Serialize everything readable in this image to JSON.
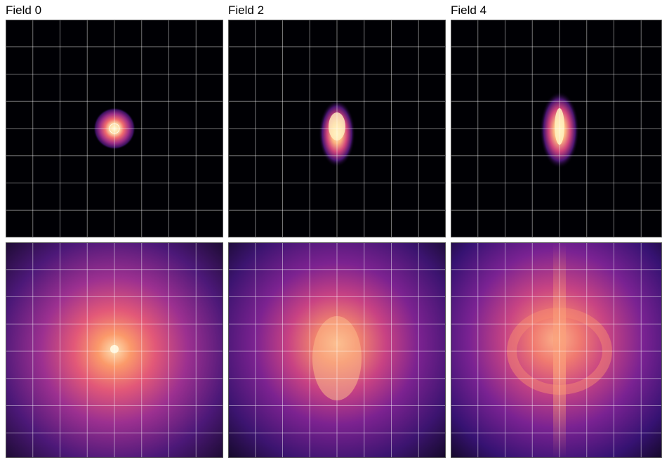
{
  "panels": [
    {
      "title": "Field 0"
    },
    {
      "title": "Field 2"
    },
    {
      "title": "Field 4"
    }
  ]
}
